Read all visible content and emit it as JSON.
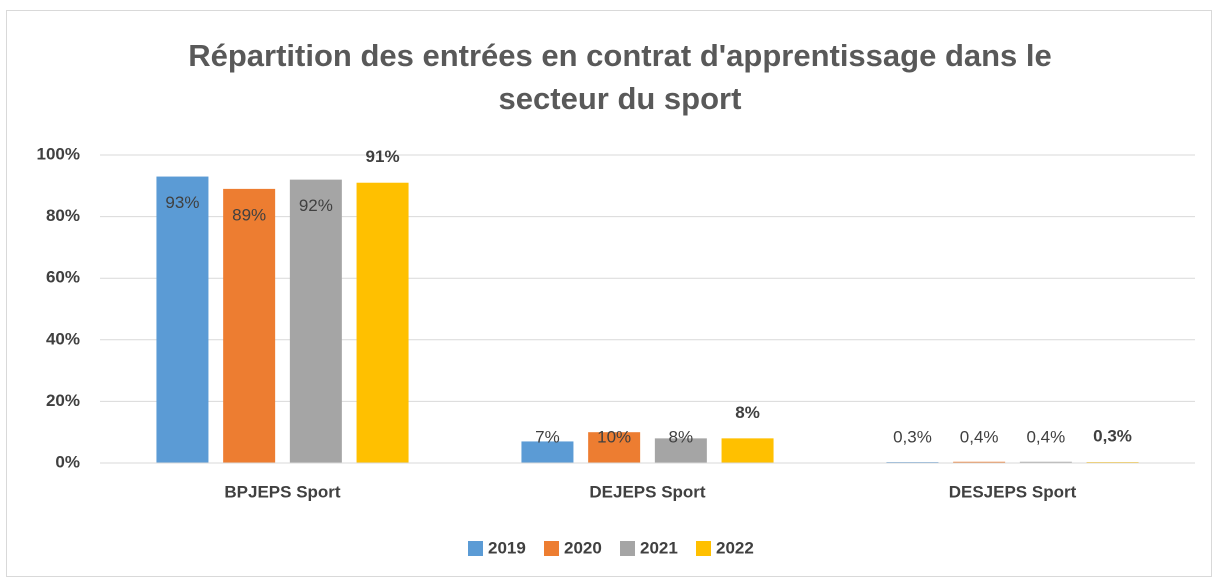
{
  "chart_data": {
    "type": "bar",
    "title": "Répartition des entrées en contrat d'apprentissage dans le secteur du sport",
    "categories": [
      "BPJEPS Sport",
      "DEJEPS Sport",
      "DESJEPS Sport"
    ],
    "series": [
      {
        "name": "2019",
        "color": "#5b9bd5",
        "values": [
          93,
          7,
          0.3
        ],
        "value_labels": [
          "93%",
          "7%",
          "0,3%"
        ]
      },
      {
        "name": "2020",
        "color": "#ed7d31",
        "values": [
          89,
          10,
          0.4
        ],
        "value_labels": [
          "89%",
          "10%",
          "0,4%"
        ]
      },
      {
        "name": "2021",
        "color": "#a5a5a5",
        "values": [
          92,
          8,
          0.4
        ],
        "value_labels": [
          "92%",
          "8%",
          "0,4%"
        ]
      },
      {
        "name": "2022",
        "color": "#ffc000",
        "values": [
          91,
          8,
          0.3
        ],
        "value_labels": [
          "91%",
          "8%",
          "0,3%"
        ],
        "bold_labels": true
      }
    ],
    "ylim": [
      0,
      100
    ],
    "yticks": [
      {
        "value": 0,
        "label": "0%"
      },
      {
        "value": 20,
        "label": "20%"
      },
      {
        "value": 40,
        "label": "40%"
      },
      {
        "value": 60,
        "label": "60%"
      },
      {
        "value": 80,
        "label": "80%"
      },
      {
        "value": 100,
        "label": "100%"
      }
    ],
    "grid": true,
    "legend": "bottom"
  }
}
